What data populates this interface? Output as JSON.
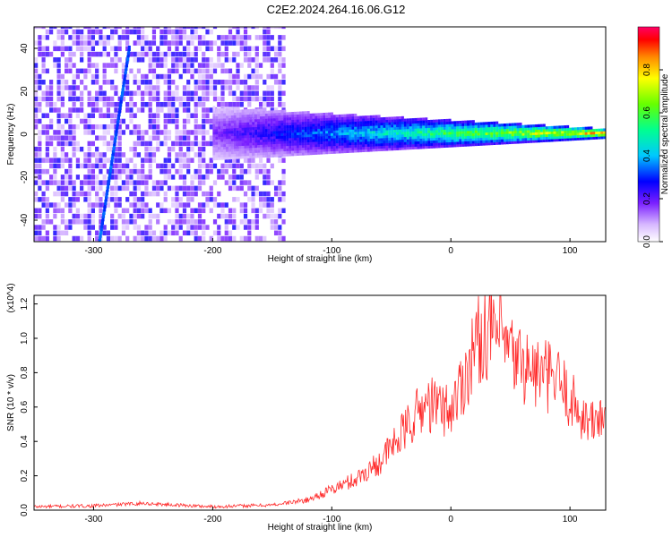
{
  "title": "C2E2.2024.264.16.06.G12",
  "colors": {
    "spectrogram_base": "#7a1fff",
    "snr_line": "#ff2a2a",
    "frame": "#000000",
    "colormap": [
      "#ffffff",
      "#e8d6ff",
      "#a04dff",
      "#5a00ff",
      "#0000ff",
      "#00c8ff",
      "#00ff90",
      "#66ff00",
      "#ffff00",
      "#ff8800",
      "#ff0000",
      "#ff0066"
    ]
  },
  "chart_data": [
    {
      "type": "heatmap",
      "name": "spectrogram",
      "xlabel": "Height of straight line (km)",
      "ylabel": "Frequency (Hz)",
      "xlim": [
        -350,
        130
      ],
      "ylim": [
        -50,
        50
      ],
      "xticks": [
        -300,
        -200,
        -100,
        0,
        100
      ],
      "yticks": [
        -40,
        -20,
        0,
        20,
        40
      ],
      "colorbar": {
        "label": "Normalized spectral amplitude",
        "range": [
          0,
          1
        ],
        "ticks": [
          "0.0",
          "0.2",
          "0.4",
          "0.6",
          "0.8"
        ]
      },
      "features": [
        {
          "kind": "noise",
          "x_range": [
            -350,
            -140
          ],
          "freq_range": [
            -50,
            50
          ],
          "amplitude": "0.1–0.3"
        },
        {
          "kind": "line",
          "x_range": [
            -295,
            -270
          ],
          "freq_range": [
            -50,
            40
          ],
          "amplitude": "0.3–0.4"
        },
        {
          "kind": "band",
          "x_range": [
            -200,
            130
          ],
          "freq_center": 0,
          "freq_halfwidth_start": 12,
          "freq_halfwidth_end": 2,
          "amplitude_start": 0.2,
          "amplitude_end": 0.95
        }
      ]
    },
    {
      "type": "line",
      "name": "snr",
      "xlabel": "Height of straight line (km)",
      "ylabel": "SNR (10 * v/v)",
      "scale_note": "(x10^4)",
      "xlim": [
        -350,
        130
      ],
      "ylim": [
        0,
        1.25
      ],
      "xticks": [
        -300,
        -200,
        -100,
        0,
        100
      ],
      "yticks": [
        "0.0",
        "0.2",
        "0.4",
        "0.6",
        "0.8",
        "1.0",
        "1.2"
      ],
      "x": [
        -350,
        -300,
        -260,
        -200,
        -150,
        -120,
        -100,
        -80,
        -60,
        -40,
        -30,
        -20,
        -10,
        0,
        10,
        20,
        30,
        40,
        50,
        60,
        70,
        80,
        90,
        100,
        110,
        120,
        130
      ],
      "y": [
        0.02,
        0.025,
        0.04,
        0.02,
        0.03,
        0.06,
        0.12,
        0.18,
        0.28,
        0.45,
        0.55,
        0.62,
        0.6,
        0.58,
        0.75,
        0.95,
        1.05,
        1.02,
        0.9,
        0.85,
        0.8,
        0.78,
        0.75,
        0.65,
        0.55,
        0.5,
        0.6
      ]
    }
  ]
}
